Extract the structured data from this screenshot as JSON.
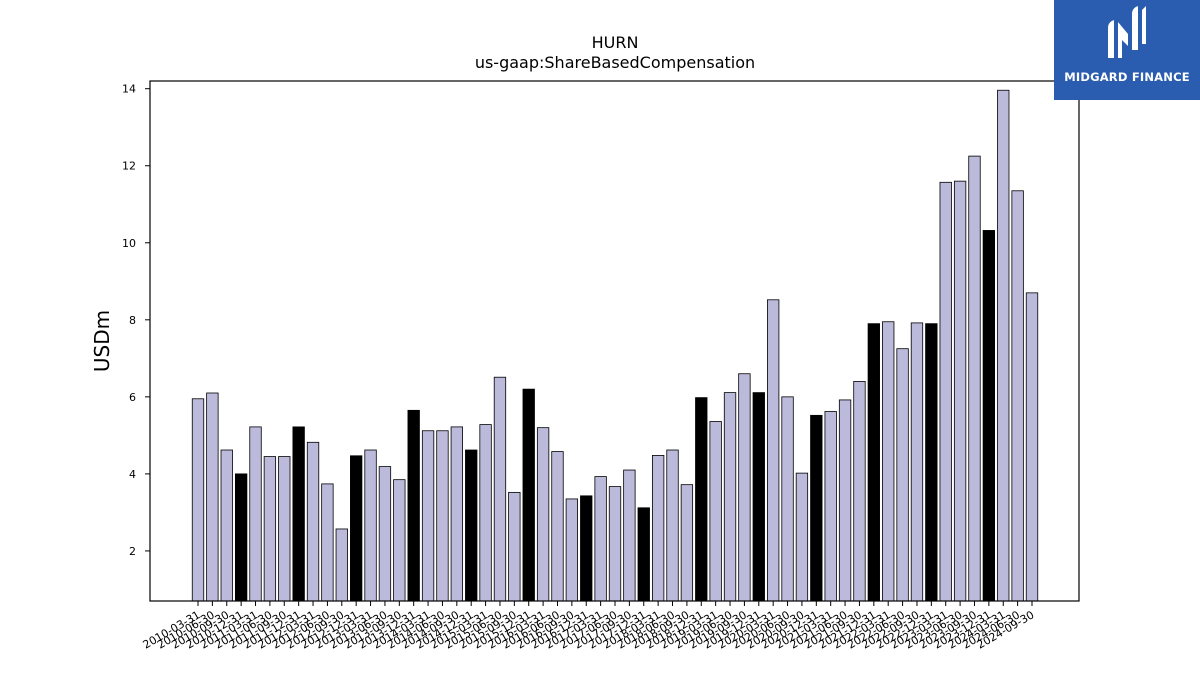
{
  "brand": {
    "name": "MIDGARD FINANCE",
    "logo_icon": "midgard-logo-icon",
    "background_color": "#2a5db0"
  },
  "chart_data": {
    "type": "bar",
    "title": "HURN",
    "subtitle": "us-gaap:ShareBasedCompensation",
    "xlabel": "",
    "ylabel": "USDm",
    "ylim": [
      0.7,
      14.2
    ],
    "yticks": [
      2,
      4,
      6,
      8,
      10,
      12,
      14
    ],
    "grid": false,
    "colors": {
      "quarterly": "#bcbadb",
      "annual": "#000000"
    },
    "categories": [
      "2010-03-31",
      "2010-06-30",
      "2010-09-30",
      "2010-12-31",
      "2011-03-31",
      "2011-06-30",
      "2011-09-30",
      "2011-12-31",
      "2012-03-31",
      "2012-06-30",
      "2012-09-30",
      "2012-12-31",
      "2013-03-31",
      "2013-06-30",
      "2013-09-30",
      "2013-12-31",
      "2014-03-31",
      "2014-06-30",
      "2014-09-30",
      "2014-12-31",
      "2015-03-31",
      "2015-06-30",
      "2015-09-30",
      "2015-12-31",
      "2016-03-31",
      "2016-06-30",
      "2016-09-30",
      "2016-12-31",
      "2017-03-31",
      "2017-06-30",
      "2017-09-30",
      "2017-12-31",
      "2018-03-31",
      "2018-06-30",
      "2018-09-30",
      "2018-12-31",
      "2019-03-31",
      "2019-06-30",
      "2019-09-30",
      "2019-12-31",
      "2020-03-31",
      "2020-06-30",
      "2020-09-30",
      "2020-12-31",
      "2021-03-31",
      "2021-06-30",
      "2021-09-30",
      "2021-12-31",
      "2022-03-31",
      "2022-06-30",
      "2022-09-30",
      "2022-12-31",
      "2023-03-31",
      "2023-06-30",
      "2023-09-30",
      "2023-12-31",
      "2024-03-31",
      "2024-06-30",
      "2024-09-30"
    ],
    "values": [
      5.95,
      6.1,
      4.62,
      4.0,
      5.22,
      4.45,
      4.45,
      5.22,
      4.82,
      3.74,
      2.57,
      4.47,
      4.62,
      4.19,
      3.85,
      5.65,
      5.12,
      5.12,
      5.22,
      4.62,
      5.28,
      6.51,
      3.52,
      6.2,
      5.2,
      4.58,
      3.35,
      3.43,
      3.93,
      3.67,
      4.1,
      3.12,
      4.48,
      4.62,
      3.72,
      5.98,
      5.36,
      6.11,
      6.6,
      6.11,
      8.52,
      6.0,
      4.02,
      5.52,
      5.62,
      5.92,
      6.4,
      7.9,
      7.95,
      7.25,
      7.92,
      7.9,
      11.57,
      11.6,
      12.25,
      10.32,
      13.96,
      11.35,
      8.7
    ],
    "annual": [
      false,
      false,
      false,
      true,
      false,
      false,
      false,
      true,
      false,
      false,
      false,
      true,
      false,
      false,
      false,
      true,
      false,
      false,
      false,
      true,
      false,
      false,
      false,
      true,
      false,
      false,
      false,
      true,
      false,
      false,
      false,
      true,
      false,
      false,
      false,
      true,
      false,
      false,
      false,
      true,
      false,
      false,
      false,
      true,
      false,
      false,
      false,
      true,
      false,
      false,
      false,
      true,
      false,
      false,
      false,
      true,
      false,
      false,
      false
    ]
  }
}
